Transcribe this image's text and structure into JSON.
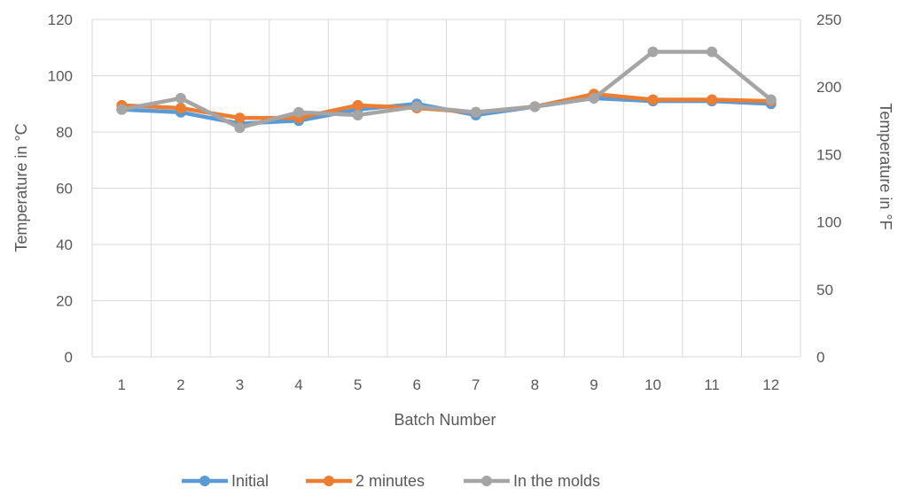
{
  "chart_data": {
    "type": "line",
    "title": "",
    "xlabel": "Batch Number",
    "ylabel": "Temperature in °C",
    "y2label": "Temperature in °F",
    "categories": [
      "1",
      "2",
      "3",
      "4",
      "5",
      "6",
      "7",
      "8",
      "9",
      "10",
      "11",
      "12"
    ],
    "ylim": [
      0,
      120
    ],
    "yticks": [
      0,
      20,
      40,
      60,
      80,
      100,
      120
    ],
    "y2lim": [
      0,
      250
    ],
    "y2ticks": [
      0,
      50,
      100,
      150,
      200,
      250
    ],
    "grid": true,
    "legend": "bottom",
    "series": [
      {
        "name": "Initial",
        "color": "#5B9BD5",
        "values": [
          88,
          87,
          83,
          84,
          88,
          90,
          86,
          89,
          92,
          91,
          91,
          90
        ]
      },
      {
        "name": "2 minutes",
        "color": "#ED7D31",
        "values": [
          89.5,
          88.5,
          85,
          85,
          89.5,
          88.5,
          87,
          89,
          93.5,
          91.5,
          91.5,
          91
        ]
      },
      {
        "name": "In the molds",
        "color": "#A5A5A5",
        "values": [
          88,
          92,
          81.5,
          87,
          86,
          89,
          87,
          89,
          92,
          108.5,
          108.5,
          91.5
        ]
      }
    ]
  }
}
